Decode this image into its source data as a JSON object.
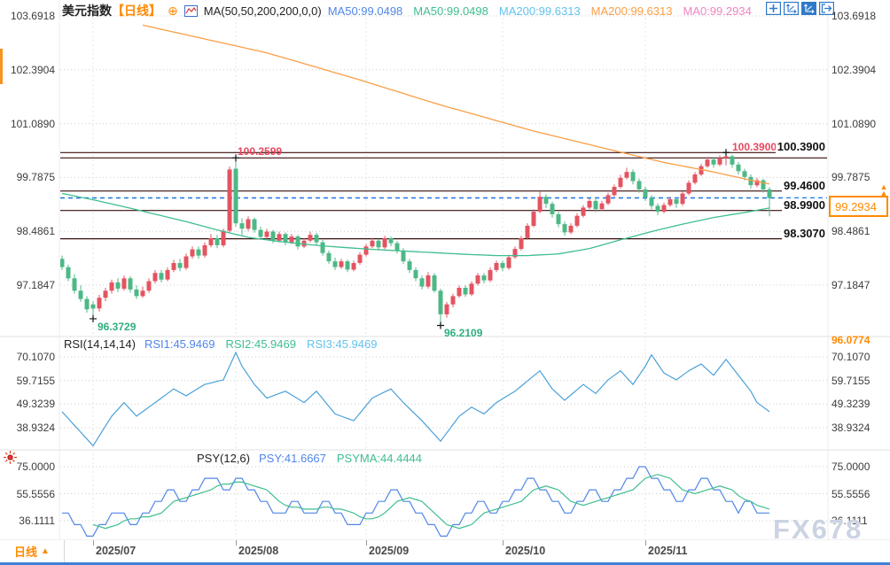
{
  "header": {
    "symbol": "美元指数",
    "period_tag": "【日线】",
    "ma_label": "MA(50,50,200,200,0,0)",
    "ma_values": [
      {
        "label": "MA50:99.0498",
        "color": "#5086e8"
      },
      {
        "label": "MA50:99.0498",
        "color": "#3fbe8f"
      },
      {
        "label": "MA200:99.6313",
        "color": "#62c2ee"
      },
      {
        "label": "MA200:99.6313",
        "color": "#fa9e45"
      },
      {
        "label": "MA0:99.2934",
        "color": "#ef84c4"
      }
    ]
  },
  "toolbar_icons": [
    "crosshair-icon",
    "axis-scale-icon",
    "axis-scale-active-icon",
    "exit-right-icon"
  ],
  "axes": {
    "main_labels": [
      "103.6918",
      "102.3904",
      "101.0890",
      "99.7875",
      "98.4861",
      "97.1847"
    ],
    "rsi_labels": [
      "70.1070",
      "59.7155",
      "49.3239",
      "38.9324"
    ],
    "psy_labels": [
      "75.0000",
      "55.5556",
      "36.1111"
    ]
  },
  "levels": {
    "bold_labels": [
      {
        "text": "100.3900",
        "price": 100.39
      },
      {
        "text": "99.4600",
        "price": 99.46
      },
      {
        "text": "98.9900",
        "price": 98.99
      },
      {
        "text": "98.3070",
        "price": 98.307
      }
    ],
    "line_prices": [
      100.39,
      100.2599,
      99.46,
      98.99,
      98.307
    ]
  },
  "annotations": {
    "high1": "100.2599",
    "high2": "100.3900",
    "low1": "96.3729",
    "low2": "96.2109",
    "range_low": "96.0774"
  },
  "current_price": {
    "value": "99.2934",
    "price": 99.2934,
    "color": "#ff8a00"
  },
  "rsi_header": {
    "name": "RSI(14,14,14)",
    "values": [
      {
        "label": "RSI1:45.9469",
        "color": "#5086e8"
      },
      {
        "label": "RSI2:45.9469",
        "color": "#3fbe8f"
      },
      {
        "label": "RSI3:45.9469",
        "color": "#62c2ee"
      }
    ]
  },
  "psy_header": {
    "name": "PSY(12,6)",
    "values": [
      {
        "label": "PSY:41.6667",
        "color": "#5086e8"
      },
      {
        "label": "PSYMA:44.4444",
        "color": "#3fbe8f"
      }
    ]
  },
  "x_axis": {
    "labels": [
      "2025/07",
      "2025/08",
      "2025/09",
      "2025/10",
      "2025/11"
    ],
    "tick_days": [
      5,
      28,
      49,
      71,
      94
    ]
  },
  "bottom_bar": {
    "period_label": "日线"
  },
  "watermark": "FX678",
  "colors": {
    "candle_up": "#e35461",
    "candle_down": "#4db886",
    "ma50": "#3fbe8f",
    "ma200": "#fa9e45",
    "level_line": "#3a0f0f",
    "current_line": "#1a73e8",
    "rsi_line": "#4aa0d8",
    "psy_line": "#5086e8",
    "psyma_line": "#3fbe8f",
    "accent_orange": "#ff8a00"
  },
  "chart_data": {
    "type": "candlestick+indicators",
    "title": "美元指数 日线 (US Dollar Index, daily)",
    "price_axis_range": [
      96.0774,
      103.6918
    ],
    "candles": [
      [
        97.82,
        97.9,
        97.55,
        97.62
      ],
      [
        97.62,
        97.68,
        97.28,
        97.35
      ],
      [
        97.35,
        97.45,
        96.98,
        97.05
      ],
      [
        97.05,
        97.18,
        96.78,
        96.85
      ],
      [
        96.85,
        96.92,
        96.52,
        96.6
      ],
      [
        96.72,
        96.8,
        96.37,
        96.62
      ],
      [
        96.62,
        96.95,
        96.55,
        96.88
      ],
      [
        96.88,
        97.12,
        96.8,
        97.05
      ],
      [
        97.05,
        97.32,
        96.98,
        97.25
      ],
      [
        97.25,
        97.35,
        97.02,
        97.1
      ],
      [
        97.1,
        97.42,
        97.05,
        97.35
      ],
      [
        97.35,
        97.4,
        97.0,
        97.08
      ],
      [
        97.08,
        97.18,
        96.85,
        96.92
      ],
      [
        96.92,
        97.15,
        96.88,
        97.05
      ],
      [
        97.05,
        97.35,
        97.0,
        97.28
      ],
      [
        97.28,
        97.55,
        97.22,
        97.48
      ],
      [
        97.48,
        97.55,
        97.25,
        97.32
      ],
      [
        97.32,
        97.62,
        97.28,
        97.55
      ],
      [
        97.55,
        97.8,
        97.5,
        97.72
      ],
      [
        97.72,
        97.82,
        97.52,
        97.6
      ],
      [
        97.6,
        97.95,
        97.55,
        97.88
      ],
      [
        97.88,
        98.12,
        97.82,
        98.05
      ],
      [
        98.05,
        98.12,
        97.82,
        97.9
      ],
      [
        97.9,
        98.22,
        97.85,
        98.15
      ],
      [
        98.15,
        98.42,
        98.1,
        98.32
      ],
      [
        98.32,
        98.4,
        98.08,
        98.15
      ],
      [
        98.15,
        98.55,
        98.1,
        98.5
      ],
      [
        98.5,
        100.05,
        98.45,
        99.98
      ],
      [
        100.0,
        100.26,
        98.6,
        98.68
      ],
      [
        98.68,
        98.8,
        98.4,
        98.55
      ],
      [
        98.55,
        98.85,
        98.5,
        98.78
      ],
      [
        98.78,
        98.82,
        98.45,
        98.52
      ],
      [
        98.52,
        98.6,
        98.28,
        98.35
      ],
      [
        98.35,
        98.55,
        98.3,
        98.48
      ],
      [
        98.48,
        98.52,
        98.2,
        98.26
      ],
      [
        98.26,
        98.48,
        98.22,
        98.42
      ],
      [
        98.42,
        98.46,
        98.15,
        98.22
      ],
      [
        98.22,
        98.42,
        98.18,
        98.36
      ],
      [
        98.36,
        98.4,
        98.05,
        98.12
      ],
      [
        98.12,
        98.32,
        98.08,
        98.26
      ],
      [
        98.26,
        98.48,
        98.22,
        98.4
      ],
      [
        98.4,
        98.45,
        98.15,
        98.22
      ],
      [
        98.22,
        98.28,
        97.9,
        97.96
      ],
      [
        97.96,
        98.02,
        97.7,
        97.76
      ],
      [
        97.76,
        97.85,
        97.55,
        97.62
      ],
      [
        97.62,
        97.82,
        97.58,
        97.76
      ],
      [
        97.76,
        97.8,
        97.5,
        97.56
      ],
      [
        97.56,
        97.78,
        97.52,
        97.72
      ],
      [
        97.72,
        97.98,
        97.68,
        97.92
      ],
      [
        97.92,
        98.18,
        97.88,
        98.12
      ],
      [
        98.12,
        98.32,
        98.08,
        98.26
      ],
      [
        98.26,
        98.3,
        98.02,
        98.1
      ],
      [
        98.1,
        98.38,
        98.06,
        98.32
      ],
      [
        98.32,
        98.36,
        98.12,
        98.2
      ],
      [
        98.2,
        98.25,
        97.95,
        98.02
      ],
      [
        98.02,
        98.08,
        97.7,
        97.76
      ],
      [
        97.76,
        97.82,
        97.48,
        97.55
      ],
      [
        97.55,
        97.62,
        97.28,
        97.35
      ],
      [
        97.35,
        97.42,
        97.08,
        97.15
      ],
      [
        97.15,
        97.5,
        97.1,
        97.42
      ],
      [
        97.42,
        97.48,
        97.0,
        97.05
      ],
      [
        97.05,
        97.1,
        96.21,
        96.48
      ],
      [
        96.48,
        96.78,
        96.4,
        96.72
      ],
      [
        96.72,
        96.98,
        96.65,
        96.92
      ],
      [
        96.92,
        97.18,
        96.88,
        97.12
      ],
      [
        97.12,
        97.18,
        96.9,
        96.96
      ],
      [
        96.96,
        97.28,
        96.92,
        97.22
      ],
      [
        97.22,
        97.48,
        97.18,
        97.42
      ],
      [
        97.42,
        97.48,
        97.22,
        97.3
      ],
      [
        97.3,
        97.62,
        97.26,
        97.55
      ],
      [
        97.55,
        97.78,
        97.5,
        97.72
      ],
      [
        97.72,
        97.78,
        97.52,
        97.6
      ],
      [
        97.6,
        97.92,
        97.56,
        97.86
      ],
      [
        97.86,
        98.12,
        97.82,
        98.06
      ],
      [
        98.06,
        98.38,
        98.02,
        98.32
      ],
      [
        98.32,
        98.68,
        98.28,
        98.62
      ],
      [
        98.62,
        99.02,
        98.58,
        98.96
      ],
      [
        98.96,
        99.45,
        98.92,
        99.32
      ],
      [
        99.32,
        99.38,
        99.05,
        99.15
      ],
      [
        99.15,
        99.2,
        98.82,
        98.9
      ],
      [
        98.9,
        98.96,
        98.58,
        98.66
      ],
      [
        98.66,
        98.72,
        98.38,
        98.46
      ],
      [
        98.46,
        98.68,
        98.42,
        98.62
      ],
      [
        98.62,
        98.92,
        98.58,
        98.86
      ],
      [
        98.86,
        99.12,
        98.82,
        99.06
      ],
      [
        99.06,
        99.28,
        99.02,
        99.22
      ],
      [
        99.22,
        99.26,
        98.95,
        99.02
      ],
      [
        99.02,
        99.22,
        98.98,
        99.16
      ],
      [
        99.16,
        99.42,
        99.12,
        99.36
      ],
      [
        99.36,
        99.62,
        99.32,
        99.56
      ],
      [
        99.56,
        99.85,
        99.52,
        99.78
      ],
      [
        99.78,
        100.02,
        99.74,
        99.92
      ],
      [
        99.92,
        99.98,
        99.62,
        99.7
      ],
      [
        99.7,
        99.76,
        99.42,
        99.5
      ],
      [
        99.5,
        99.56,
        99.22,
        99.3
      ],
      [
        99.3,
        99.36,
        99.02,
        99.1
      ],
      [
        99.1,
        99.16,
        98.88,
        98.96
      ],
      [
        98.96,
        99.18,
        98.92,
        99.12
      ],
      [
        99.12,
        99.32,
        99.08,
        99.26
      ],
      [
        99.26,
        99.3,
        99.05,
        99.15
      ],
      [
        99.15,
        99.45,
        99.1,
        99.4
      ],
      [
        99.4,
        99.72,
        99.36,
        99.66
      ],
      [
        99.66,
        99.92,
        99.62,
        99.86
      ],
      [
        99.86,
        100.12,
        99.82,
        100.06
      ],
      [
        100.06,
        100.28,
        100.02,
        100.22
      ],
      [
        100.22,
        100.26,
        100.02,
        100.1
      ],
      [
        100.1,
        100.32,
        100.06,
        100.26
      ],
      [
        100.26,
        100.39,
        100.08,
        100.3
      ],
      [
        100.3,
        100.34,
        100.02,
        100.1
      ],
      [
        100.1,
        100.16,
        99.86,
        99.94
      ],
      [
        99.94,
        100.0,
        99.72,
        99.8
      ],
      [
        99.8,
        99.86,
        99.52,
        99.6
      ],
      [
        99.6,
        99.78,
        99.55,
        99.72
      ],
      [
        99.72,
        99.76,
        99.42,
        99.5
      ],
      [
        99.5,
        99.55,
        98.85,
        99.29
      ]
    ],
    "markers": [
      {
        "day": 5,
        "price": 96.3729,
        "kind": "low"
      },
      {
        "day": 28,
        "price": 100.2599,
        "kind": "high"
      },
      {
        "day": 61,
        "price": 96.2109,
        "kind": "low"
      },
      {
        "day": 107,
        "price": 100.39,
        "kind": "high"
      }
    ],
    "ma50_waypoints": [
      [
        0,
        99.4
      ],
      [
        5,
        99.25
      ],
      [
        10,
        99.08
      ],
      [
        15,
        98.9
      ],
      [
        20,
        98.72
      ],
      [
        25,
        98.52
      ],
      [
        30,
        98.34
      ],
      [
        35,
        98.24
      ],
      [
        40,
        98.16
      ],
      [
        45,
        98.1
      ],
      [
        50,
        98.05
      ],
      [
        55,
        98.01
      ],
      [
        60,
        97.97
      ],
      [
        65,
        97.93
      ],
      [
        70,
        97.9
      ],
      [
        75,
        97.9
      ],
      [
        80,
        97.94
      ],
      [
        85,
        98.07
      ],
      [
        90,
        98.28
      ],
      [
        95,
        98.48
      ],
      [
        100,
        98.66
      ],
      [
        105,
        98.82
      ],
      [
        110,
        98.94
      ],
      [
        114,
        99.05
      ]
    ],
    "ma200_waypoints": [
      [
        13,
        103.47
      ],
      [
        33,
        102.8
      ],
      [
        47,
        102.19
      ],
      [
        61,
        101.54
      ],
      [
        76,
        100.91
      ],
      [
        90,
        100.4
      ],
      [
        97,
        100.15
      ],
      [
        104,
        99.95
      ],
      [
        108,
        99.82
      ],
      [
        111,
        99.72
      ],
      [
        114,
        99.63
      ]
    ],
    "rsi": {
      "range": [
        38.9324,
        70.107
      ],
      "waypoints": [
        [
          0,
          46
        ],
        [
          2,
          40
        ],
        [
          5,
          31
        ],
        [
          8,
          44
        ],
        [
          10,
          50
        ],
        [
          12,
          44
        ],
        [
          15,
          50
        ],
        [
          18,
          56
        ],
        [
          20,
          53
        ],
        [
          23,
          58
        ],
        [
          26,
          60
        ],
        [
          28,
          72
        ],
        [
          29,
          66
        ],
        [
          31,
          58
        ],
        [
          33,
          52
        ],
        [
          36,
          55
        ],
        [
          39,
          50
        ],
        [
          41,
          55
        ],
        [
          44,
          45
        ],
        [
          47,
          42
        ],
        [
          50,
          52
        ],
        [
          53,
          56
        ],
        [
          55,
          50
        ],
        [
          58,
          42
        ],
        [
          61,
          33
        ],
        [
          64,
          44
        ],
        [
          66,
          48
        ],
        [
          68,
          45
        ],
        [
          70,
          50
        ],
        [
          73,
          55
        ],
        [
          77,
          64
        ],
        [
          79,
          56
        ],
        [
          81,
          51
        ],
        [
          84,
          58
        ],
        [
          86,
          54
        ],
        [
          88,
          60
        ],
        [
          90,
          64
        ],
        [
          92,
          58
        ],
        [
          94,
          66
        ],
        [
          95,
          71
        ],
        [
          97,
          63
        ],
        [
          99,
          60
        ],
        [
          101,
          64
        ],
        [
          103,
          67
        ],
        [
          105,
          62
        ],
        [
          107,
          69
        ],
        [
          109,
          62
        ],
        [
          111,
          55
        ],
        [
          112,
          50
        ],
        [
          114,
          46
        ]
      ]
    },
    "psy": {
      "range": [
        36.1111,
        75.0
      ],
      "ma_period": 6,
      "step_waypoints": [
        [
          0,
          41.67
        ],
        [
          2,
          33.33
        ],
        [
          4,
          25
        ],
        [
          6,
          33.33
        ],
        [
          8,
          41.67
        ],
        [
          11,
          33.33
        ],
        [
          13,
          41.67
        ],
        [
          15,
          50
        ],
        [
          17,
          58.33
        ],
        [
          19,
          50
        ],
        [
          21,
          58.33
        ],
        [
          23,
          66.67
        ],
        [
          26,
          58.33
        ],
        [
          28,
          66.67
        ],
        [
          30,
          58.33
        ],
        [
          32,
          50
        ],
        [
          34,
          41.67
        ],
        [
          37,
          50
        ],
        [
          39,
          41.67
        ],
        [
          42,
          50
        ],
        [
          44,
          41.67
        ],
        [
          46,
          33.33
        ],
        [
          49,
          41.67
        ],
        [
          51,
          50
        ],
        [
          53,
          58.33
        ],
        [
          55,
          50
        ],
        [
          57,
          41.67
        ],
        [
          59,
          33.33
        ],
        [
          61,
          25
        ],
        [
          63,
          33.33
        ],
        [
          65,
          41.67
        ],
        [
          67,
          50
        ],
        [
          69,
          41.67
        ],
        [
          71,
          50
        ],
        [
          73,
          58.33
        ],
        [
          75,
          66.67
        ],
        [
          77,
          58.33
        ],
        [
          79,
          50
        ],
        [
          81,
          41.67
        ],
        [
          83,
          50
        ],
        [
          85,
          58.33
        ],
        [
          87,
          50
        ],
        [
          89,
          58.33
        ],
        [
          91,
          66.67
        ],
        [
          93,
          75
        ],
        [
          95,
          66.67
        ],
        [
          97,
          58.33
        ],
        [
          99,
          50
        ],
        [
          101,
          58.33
        ],
        [
          103,
          66.67
        ],
        [
          105,
          58.33
        ],
        [
          107,
          50
        ],
        [
          109,
          41.67
        ],
        [
          110,
          50
        ],
        [
          112,
          41.67
        ],
        [
          114,
          41.67
        ]
      ]
    }
  }
}
